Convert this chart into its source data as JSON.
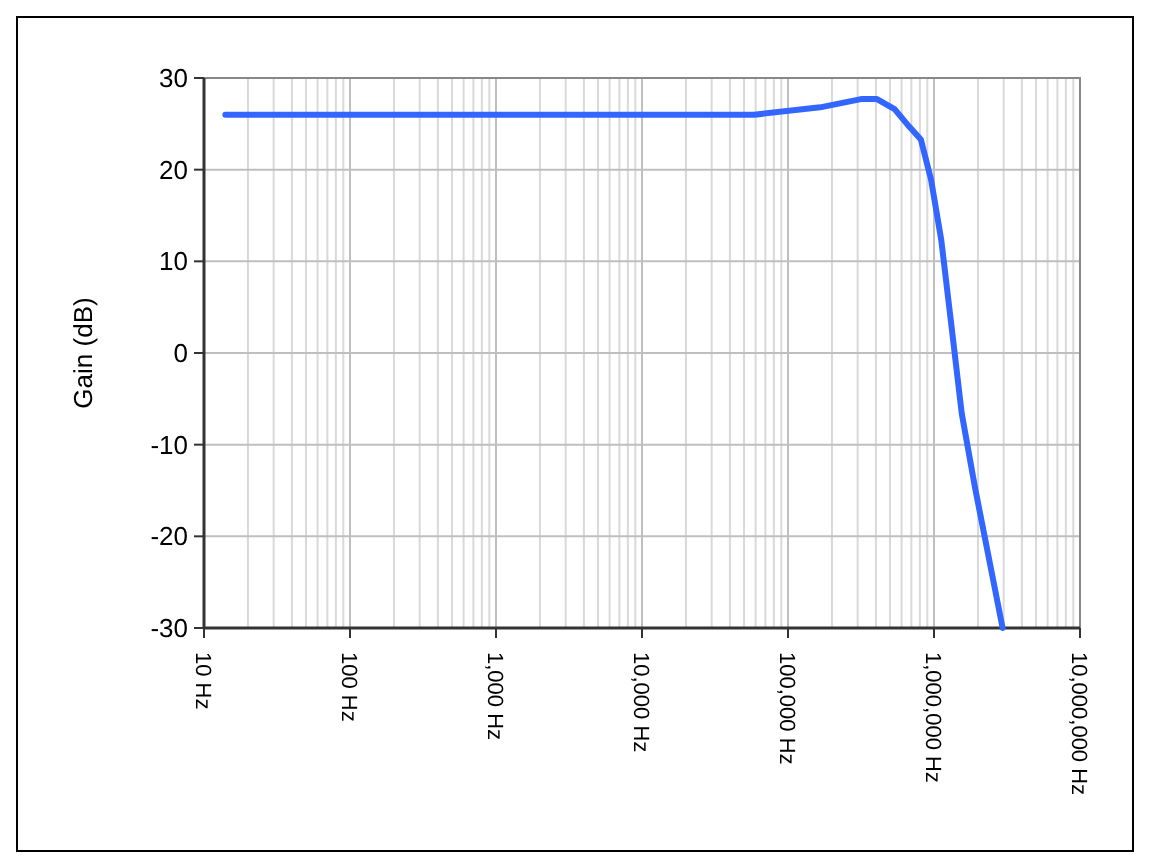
{
  "chart_data": {
    "type": "line",
    "ylabel": "Gain (dB)",
    "log": "x",
    "grid": true,
    "marker": "none",
    "line_style": "solid",
    "x": [
      14,
      13500,
      59000,
      166000,
      316000,
      407000,
      537000,
      676000,
      813000,
      955000,
      1122000,
      1318000,
      1549000,
      1905000,
      2951000
    ],
    "series": [
      {
        "color": "#3366ff",
        "values": [
          26,
          26,
          26,
          26.8,
          27.7,
          27.7,
          26.6,
          24.7,
          23.3,
          18.9,
          12.3,
          2.9,
          -6.6,
          -14.6,
          -30
        ]
      }
    ],
    "xlim": [
      10,
      10000000
    ],
    "ylim": [
      -30,
      30
    ],
    "xticks": [
      {
        "value": 10,
        "label": "10 Hz"
      },
      {
        "value": 100,
        "label": "100 Hz"
      },
      {
        "value": 1000,
        "label": "1,000 Hz"
      },
      {
        "value": 10000,
        "label": "10,000 Hz"
      },
      {
        "value": 100000,
        "label": "100,000 Hz"
      },
      {
        "value": 1000000,
        "label": "1,000,000 Hz"
      },
      {
        "value": 10000000,
        "label": "10,000,000 Hz"
      }
    ],
    "yticks": [
      -30,
      -20,
      -10,
      0,
      10,
      20,
      30
    ]
  }
}
